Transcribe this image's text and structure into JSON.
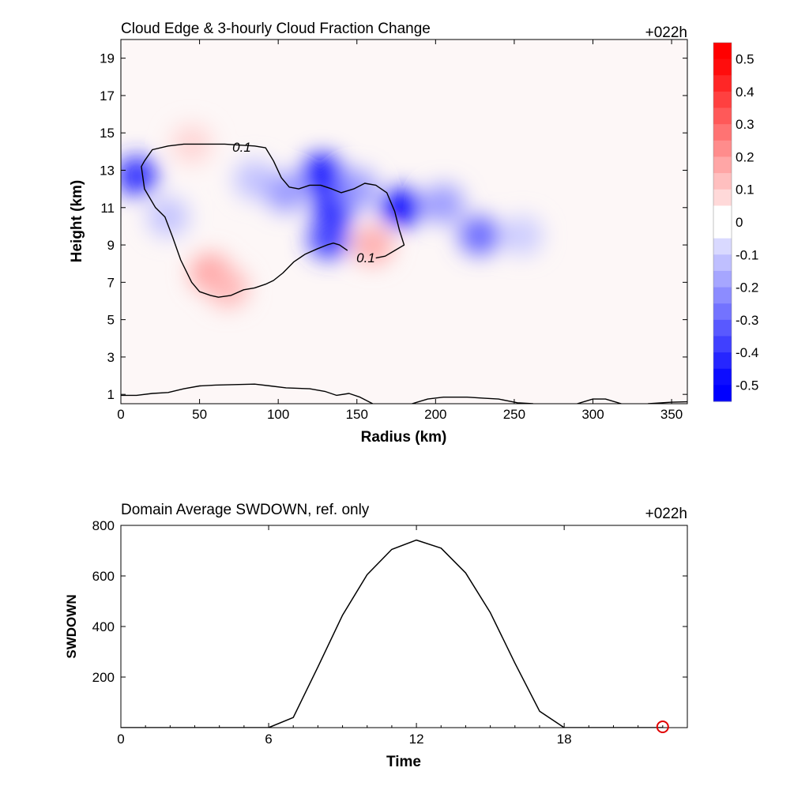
{
  "top_panel": {
    "title": "Cloud Edge & 3-hourly Cloud Fraction Change",
    "time_label": "+022h"
  },
  "bottom_panel": {
    "title": "Domain Average SWDOWN, ref. only",
    "time_label": "+022h"
  },
  "colors": {
    "positive": "#ff0000",
    "negative": "#0000ff",
    "contour": "#000000",
    "marker": "#e00000"
  },
  "chart_data": [
    {
      "type": "heatmap",
      "title": "Cloud Edge & 3-hourly Cloud Fraction Change",
      "xlabel": "Radius (km)",
      "ylabel": "Height (km)",
      "xlim": [
        0,
        360
      ],
      "ylim": [
        0.5,
        20
      ],
      "xticks": [
        "0",
        "50",
        "100",
        "150",
        "200",
        "250",
        "300",
        "350"
      ],
      "yticks": [
        "1",
        "3",
        "5",
        "7",
        "9",
        "11",
        "13",
        "15",
        "17",
        "19"
      ],
      "colorbar": {
        "ticks": [
          "0.5",
          "0.4",
          "0.3",
          "0.2",
          "0.1",
          "0",
          "-0.1",
          "-0.2",
          "-0.3",
          "-0.4",
          "-0.5"
        ],
        "range": [
          -0.55,
          0.55
        ],
        "levels": 22
      },
      "contour_label": "0.1",
      "contour_labels": [
        "0.1",
        "0.1"
      ],
      "blobs": [
        {
          "x": 10,
          "y": 12.7,
          "value": -0.42
        },
        {
          "x": 30,
          "y": 10.5,
          "value": -0.12
        },
        {
          "x": 85,
          "y": 12.5,
          "value": -0.12
        },
        {
          "x": 105,
          "y": 11.8,
          "value": -0.2
        },
        {
          "x": 128,
          "y": 12.8,
          "value": -0.5
        },
        {
          "x": 135,
          "y": 11.0,
          "value": -0.45
        },
        {
          "x": 132,
          "y": 9.3,
          "value": -0.38
        },
        {
          "x": 150,
          "y": 12.0,
          "value": -0.2
        },
        {
          "x": 178,
          "y": 11.0,
          "value": -0.5
        },
        {
          "x": 205,
          "y": 11.2,
          "value": -0.2
        },
        {
          "x": 228,
          "y": 9.5,
          "value": -0.3
        },
        {
          "x": 255,
          "y": 9.5,
          "value": -0.1
        },
        {
          "x": 57,
          "y": 7.5,
          "value": 0.18
        },
        {
          "x": 68,
          "y": 6.7,
          "value": 0.14
        },
        {
          "x": 45,
          "y": 14.4,
          "value": 0.08
        },
        {
          "x": 160,
          "y": 9.0,
          "value": 0.16
        }
      ],
      "contours": [
        {
          "label": "0.1",
          "points": [
            [
              15,
              13.5
            ],
            [
              13,
              13.2
            ],
            [
              15,
              12.0
            ],
            [
              22,
              11.0
            ],
            [
              28,
              10.5
            ],
            [
              33,
              9.4
            ],
            [
              38,
              8.2
            ],
            [
              45,
              7.0
            ],
            [
              50,
              6.5
            ],
            [
              57,
              6.3
            ],
            [
              62,
              6.2
            ],
            [
              70,
              6.3
            ],
            [
              78,
              6.6
            ],
            [
              85,
              6.7
            ],
            [
              92,
              6.9
            ],
            [
              97,
              7.1
            ],
            [
              103,
              7.5
            ],
            [
              110,
              8.1
            ],
            [
              117,
              8.5
            ],
            [
              125,
              8.8
            ],
            [
              131,
              9.0
            ],
            [
              135,
              9.1
            ],
            [
              139,
              9.0
            ],
            [
              144,
              8.7
            ]
          ]
        },
        {
          "label": "0.1",
          "points": [
            [
              15,
              13.5
            ],
            [
              20,
              14.1
            ],
            [
              30,
              14.3
            ],
            [
              40,
              14.4
            ],
            [
              58,
              14.4
            ],
            [
              66,
              14.4
            ],
            [
              85,
              14.3
            ],
            [
              92,
              14.2
            ],
            [
              97,
              13.5
            ],
            [
              102,
              12.6
            ],
            [
              107,
              12.1
            ],
            [
              113,
              12.0
            ],
            [
              120,
              12.2
            ],
            [
              127,
              12.2
            ],
            [
              134,
              12.0
            ],
            [
              140,
              11.8
            ],
            [
              148,
              12.0
            ],
            [
              155,
              12.3
            ],
            [
              162,
              12.2
            ],
            [
              169,
              11.8
            ],
            [
              174,
              10.8
            ],
            [
              177,
              9.8
            ],
            [
              180,
              9.0
            ],
            [
              174,
              8.7
            ],
            [
              168,
              8.4
            ],
            [
              162,
              8.3
            ]
          ]
        },
        {
          "label": "",
          "points": [
            [
              0,
              0.95
            ],
            [
              10,
              0.95
            ],
            [
              20,
              1.05
            ],
            [
              30,
              1.1
            ],
            [
              40,
              1.3
            ],
            [
              50,
              1.45
            ],
            [
              60,
              1.5
            ],
            [
              70,
              1.52
            ],
            [
              85,
              1.55
            ],
            [
              95,
              1.45
            ],
            [
              105,
              1.35
            ],
            [
              120,
              1.3
            ],
            [
              130,
              1.15
            ],
            [
              137,
              0.95
            ],
            [
              145,
              1.05
            ],
            [
              152,
              0.85
            ],
            [
              160,
              0.5
            ]
          ]
        },
        {
          "label": "",
          "points": [
            [
              185,
              0.5
            ],
            [
              195,
              0.75
            ],
            [
              205,
              0.85
            ],
            [
              220,
              0.85
            ],
            [
              230,
              0.8
            ],
            [
              240,
              0.75
            ],
            [
              252,
              0.55
            ],
            [
              262,
              0.5
            ]
          ]
        },
        {
          "label": "",
          "points": [
            [
              290,
              0.5
            ],
            [
              300,
              0.75
            ],
            [
              308,
              0.75
            ],
            [
              318,
              0.5
            ]
          ]
        },
        {
          "label": "",
          "points": [
            [
              335,
              0.5
            ],
            [
              350,
              0.58
            ],
            [
              360,
              0.6
            ]
          ]
        }
      ]
    },
    {
      "type": "line",
      "title": "Domain Average SWDOWN, ref. only",
      "xlabel": "Time",
      "ylabel": "SWDOWN",
      "xlim": [
        0,
        23
      ],
      "ylim": [
        0,
        800
      ],
      "xticks": [
        "0",
        "6",
        "12",
        "18"
      ],
      "yticks": [
        "200",
        "400",
        "600",
        "800"
      ],
      "series": [
        {
          "x": [
            0,
            1,
            2,
            3,
            4,
            5,
            6,
            7,
            8,
            9,
            10,
            11,
            12,
            13,
            14,
            15,
            16,
            17,
            18,
            19,
            20,
            21,
            22
          ],
          "y": [
            0,
            0,
            0,
            0,
            0,
            0,
            0,
            40,
            240,
            445,
            605,
            705,
            742,
            710,
            612,
            455,
            255,
            65,
            0,
            0,
            0,
            0,
            0
          ]
        }
      ],
      "marker": {
        "x": 22,
        "y": 0
      }
    }
  ]
}
